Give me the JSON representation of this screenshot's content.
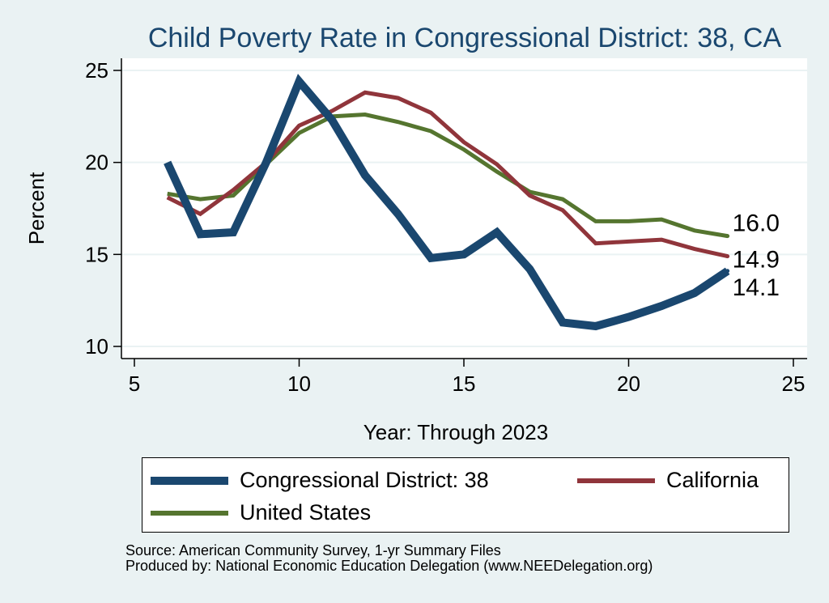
{
  "chart_data": {
    "type": "line",
    "title": "Child Poverty Rate in Congressional District:  38, CA",
    "xlabel": "Year: Through 2023",
    "ylabel": "Percent",
    "xlim": [
      5,
      25
    ],
    "ylim": [
      10,
      25
    ],
    "xticks": [
      5,
      10,
      15,
      20,
      25
    ],
    "yticks": [
      10,
      15,
      20,
      25
    ],
    "grid": true,
    "legend_position": "bottom",
    "x": [
      6,
      7,
      8,
      9,
      10,
      11,
      12,
      13,
      14,
      15,
      16,
      17,
      18,
      19,
      20,
      21,
      22,
      23
    ],
    "series": [
      {
        "name": "Congressional District:  38",
        "color": "#1a476f",
        "values": [
          20.0,
          16.1,
          16.2,
          20.0,
          24.4,
          22.3,
          19.3,
          17.2,
          14.8,
          15.0,
          16.2,
          14.2,
          11.3,
          11.1,
          11.6,
          12.2,
          12.9,
          14.1
        ],
        "end_label": "14.1"
      },
      {
        "name": "California",
        "color": "#90353b",
        "values": [
          18.1,
          17.2,
          18.5,
          20.0,
          22.0,
          22.8,
          23.8,
          23.5,
          22.7,
          21.1,
          19.9,
          18.2,
          17.4,
          15.6,
          15.7,
          15.8,
          15.3,
          14.9
        ],
        "end_label": "14.9"
      },
      {
        "name": "United States",
        "color": "#55752f",
        "values": [
          18.3,
          18.0,
          18.2,
          19.9,
          21.6,
          22.5,
          22.6,
          22.2,
          21.7,
          20.7,
          19.5,
          18.4,
          18.0,
          16.8,
          16.8,
          16.9,
          16.3,
          16.0
        ],
        "end_label": "16.0"
      }
    ]
  },
  "footnote": {
    "source": "Source: American Community Survey, 1-yr Summary Files",
    "produced_by": "Produced by: National Economic Education Delegation (www.NEEDelegation.org)"
  }
}
